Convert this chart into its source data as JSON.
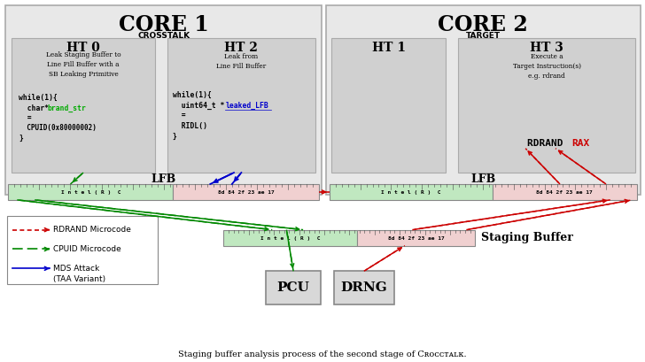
{
  "title": "Staging buffer analysis process of the second stage of Cʀᴏᴄᴄᴛᴀʟᴋ.",
  "core1_title": "CORE 1",
  "core1_subtitle": "CROSSTALK",
  "core2_title": "CORE 2",
  "core2_subtitle": "TARGET",
  "ht0_title": "HT 0",
  "ht0_desc": "Leak Staging Buffer to\nLine Fill Buffer with a\nSB Leaking Primitive",
  "ht2_title": "HT 2",
  "ht2_desc": "Leak from\nLine Fill Buffer",
  "ht1_title": "HT 1",
  "ht3_title": "HT 3",
  "ht3_desc": "Execute a\nTarget Instruction(s)\ne.g. rdrand",
  "lfb_label": "LFB",
  "sb_label": "Staging Buffer",
  "pcu_label": "PCU",
  "drng_label": "DRNG",
  "intel_text": "I n t e l ( R )  C",
  "hex_text": "8d 84 2f 23 ae 17",
  "legend_rdrand": "RDRAND Microcode",
  "legend_cpuid": "CPUID Microcode",
  "legend_mds": "MDS Attack\n(TAA Variant)",
  "bg_color": "#f0f0f0",
  "core_bg": "#e8e8e8",
  "ht_bg": "#d0d0d0",
  "lfb_green": "#c0e8c0",
  "lfb_pink": "#f0d0d0",
  "box_border": "#888888",
  "green_color": "#008800",
  "red_color": "#cc0000",
  "blue_color": "#0000cc",
  "brand_str_color": "#00aa00",
  "leaked_lfb_color": "#0000cc",
  "rax_color": "#cc0000"
}
